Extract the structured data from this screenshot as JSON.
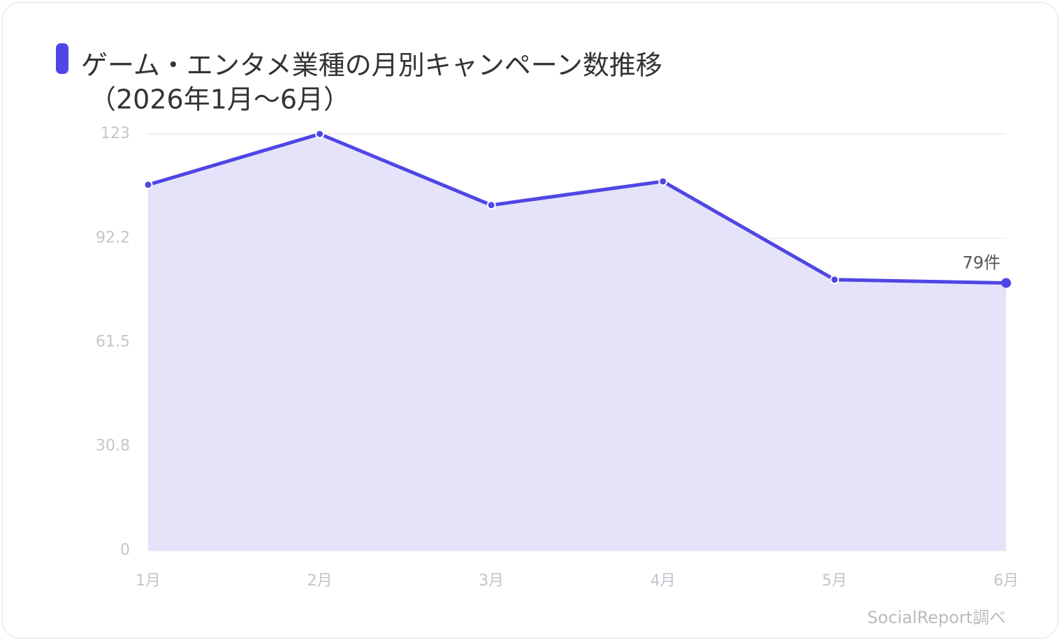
{
  "chart_data": {
    "type": "line",
    "title": "ゲーム・エンタメ業種の月別キャンペーン数推移",
    "subtitle": "（2026年1月〜6月）",
    "categories": [
      "1月",
      "2月",
      "3月",
      "4月",
      "5月",
      "6月"
    ],
    "series": [
      {
        "name": "キャンペーン数",
        "color": "#4f46e5",
        "fill": "#e5e3f9",
        "values": [
          108,
          123,
          102,
          109,
          80,
          79
        ],
        "value_labels": [
          null,
          null,
          null,
          null,
          null,
          "79件"
        ]
      }
    ],
    "ylim": [
      0,
      123
    ],
    "yticks": [
      0,
      30.8,
      61.5,
      92.2,
      123
    ],
    "grid": true,
    "source": "SocialReport調べ"
  }
}
